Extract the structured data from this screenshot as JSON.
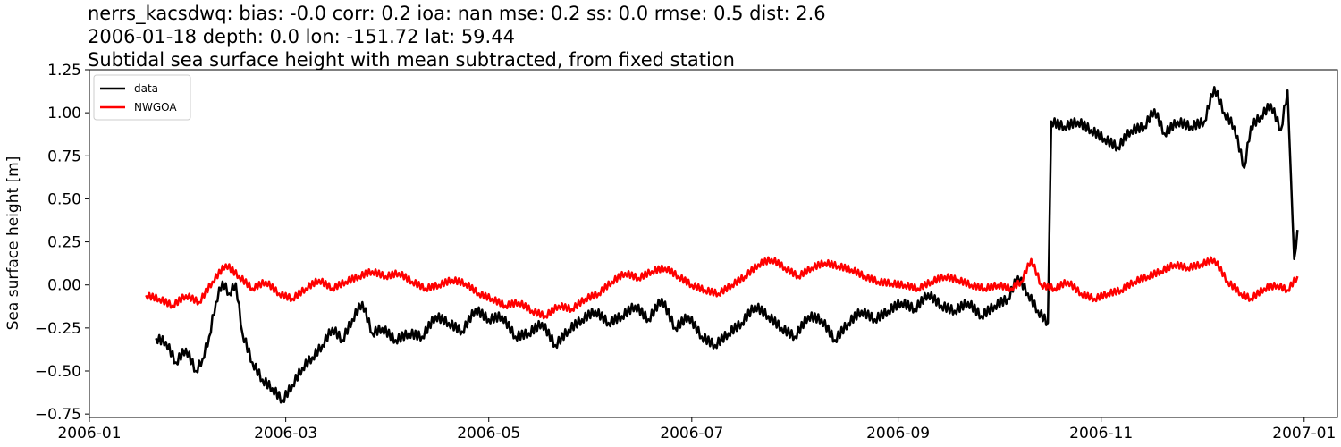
{
  "title": {
    "line1": "nerrs_kacsdwq: bias: -0.0  corr: 0.2  ioa: nan  mse: 0.2  ss: 0.0  rmse: 0.5  dist: 2.6",
    "line2": "2006-01-18 depth: 0.0 lon: -151.72 lat: 59.44",
    "line3": "Subtidal sea surface height with mean subtracted, from fixed station"
  },
  "chart_data": {
    "type": "line",
    "title": "nerrs_kacsdwq: bias: -0.0  corr: 0.2  ioa: nan  mse: 0.2  ss: 0.0  rmse: 0.5  dist: 2.6 / 2006-01-18 depth: 0.0 lon: -151.72 lat: 59.44 / Subtidal sea surface height with mean subtracted, from fixed station",
    "xlabel": "",
    "ylabel": "Sea surface height [m]",
    "xlim": [
      "2006-01-01",
      "2007-01-11"
    ],
    "ylim": [
      -0.77,
      1.25
    ],
    "x_ticks": [
      "2006-01",
      "2006-03",
      "2006-05",
      "2006-07",
      "2006-09",
      "2006-11",
      "2007-01"
    ],
    "y_ticks": [
      "−0.75",
      "−0.50",
      "−0.25",
      "0.00",
      "0.25",
      "0.50",
      "0.75",
      "1.00",
      "1.25"
    ],
    "grid": false,
    "legend": "top-left",
    "series": [
      {
        "name": "data",
        "color": "#000000",
        "points": [
          [
            "2006-01-21",
            -0.31
          ],
          [
            "2006-01-24",
            -0.33
          ],
          [
            "2006-01-27",
            -0.45
          ],
          [
            "2006-01-30",
            -0.37
          ],
          [
            "2006-02-02",
            -0.5
          ],
          [
            "2006-02-04",
            -0.43
          ],
          [
            "2006-02-06",
            -0.3
          ],
          [
            "2006-02-08",
            -0.1
          ],
          [
            "2006-02-10",
            0.02
          ],
          [
            "2006-02-12",
            -0.05
          ],
          [
            "2006-02-14",
            0.01
          ],
          [
            "2006-02-16",
            -0.28
          ],
          [
            "2006-02-19",
            -0.45
          ],
          [
            "2006-02-22",
            -0.55
          ],
          [
            "2006-02-25",
            -0.6
          ],
          [
            "2006-02-28",
            -0.67
          ],
          [
            "2006-03-03",
            -0.58
          ],
          [
            "2006-03-06",
            -0.48
          ],
          [
            "2006-03-09",
            -0.42
          ],
          [
            "2006-03-12",
            -0.35
          ],
          [
            "2006-03-15",
            -0.25
          ],
          [
            "2006-03-18",
            -0.32
          ],
          [
            "2006-03-21",
            -0.2
          ],
          [
            "2006-03-24",
            -0.1
          ],
          [
            "2006-03-27",
            -0.28
          ],
          [
            "2006-03-30",
            -0.25
          ],
          [
            "2006-04-03",
            -0.32
          ],
          [
            "2006-04-07",
            -0.28
          ],
          [
            "2006-04-11",
            -0.3
          ],
          [
            "2006-04-15",
            -0.18
          ],
          [
            "2006-04-19",
            -0.22
          ],
          [
            "2006-04-23",
            -0.27
          ],
          [
            "2006-04-27",
            -0.14
          ],
          [
            "2006-05-01",
            -0.2
          ],
          [
            "2006-05-05",
            -0.18
          ],
          [
            "2006-05-09",
            -0.3
          ],
          [
            "2006-05-13",
            -0.28
          ],
          [
            "2006-05-17",
            -0.22
          ],
          [
            "2006-05-21",
            -0.35
          ],
          [
            "2006-05-25",
            -0.26
          ],
          [
            "2006-05-29",
            -0.2
          ],
          [
            "2006-06-02",
            -0.15
          ],
          [
            "2006-06-06",
            -0.22
          ],
          [
            "2006-06-10",
            -0.18
          ],
          [
            "2006-06-14",
            -0.12
          ],
          [
            "2006-06-18",
            -0.2
          ],
          [
            "2006-06-22",
            -0.08
          ],
          [
            "2006-06-26",
            -0.25
          ],
          [
            "2006-06-30",
            -0.18
          ],
          [
            "2006-07-04",
            -0.3
          ],
          [
            "2006-07-08",
            -0.35
          ],
          [
            "2006-07-12",
            -0.28
          ],
          [
            "2006-07-16",
            -0.22
          ],
          [
            "2006-07-20",
            -0.12
          ],
          [
            "2006-07-24",
            -0.18
          ],
          [
            "2006-07-28",
            -0.25
          ],
          [
            "2006-08-01",
            -0.3
          ],
          [
            "2006-08-05",
            -0.18
          ],
          [
            "2006-08-09",
            -0.2
          ],
          [
            "2006-08-13",
            -0.32
          ],
          [
            "2006-08-17",
            -0.22
          ],
          [
            "2006-08-21",
            -0.15
          ],
          [
            "2006-08-25",
            -0.2
          ],
          [
            "2006-08-29",
            -0.15
          ],
          [
            "2006-09-02",
            -0.1
          ],
          [
            "2006-09-06",
            -0.14
          ],
          [
            "2006-09-10",
            -0.05
          ],
          [
            "2006-09-14",
            -0.12
          ],
          [
            "2006-09-18",
            -0.15
          ],
          [
            "2006-09-22",
            -0.1
          ],
          [
            "2006-09-26",
            -0.18
          ],
          [
            "2006-09-30",
            -0.12
          ],
          [
            "2006-10-04",
            -0.08
          ],
          [
            "2006-10-07",
            0.05
          ],
          [
            "2006-10-10",
            -0.05
          ],
          [
            "2006-10-13",
            -0.15
          ],
          [
            "2006-10-16",
            -0.22
          ],
          [
            "2006-10-17",
            0.95
          ],
          [
            "2006-10-21",
            0.92
          ],
          [
            "2006-10-25",
            0.95
          ],
          [
            "2006-10-29",
            0.9
          ],
          [
            "2006-11-02",
            0.85
          ],
          [
            "2006-11-06",
            0.8
          ],
          [
            "2006-11-10",
            0.9
          ],
          [
            "2006-11-14",
            0.92
          ],
          [
            "2006-11-17",
            1.02
          ],
          [
            "2006-11-20",
            0.88
          ],
          [
            "2006-11-24",
            0.95
          ],
          [
            "2006-11-28",
            0.92
          ],
          [
            "2006-12-02",
            0.95
          ],
          [
            "2006-12-05",
            1.15
          ],
          [
            "2006-12-08",
            1.0
          ],
          [
            "2006-12-11",
            0.92
          ],
          [
            "2006-12-14",
            0.68
          ],
          [
            "2006-12-16",
            0.92
          ],
          [
            "2006-12-19",
            0.98
          ],
          [
            "2006-12-22",
            1.05
          ],
          [
            "2006-12-25",
            0.9
          ],
          [
            "2006-12-27",
            1.13
          ],
          [
            "2006-12-29",
            0.15
          ],
          [
            "2006-12-30",
            0.32
          ]
        ]
      },
      {
        "name": "NWGOA",
        "color": "#ff0000",
        "points": [
          [
            "2006-01-18",
            -0.06
          ],
          [
            "2006-01-22",
            -0.08
          ],
          [
            "2006-01-26",
            -0.12
          ],
          [
            "2006-01-30",
            -0.06
          ],
          [
            "2006-02-03",
            -0.1
          ],
          [
            "2006-02-07",
            0.02
          ],
          [
            "2006-02-11",
            0.12
          ],
          [
            "2006-02-15",
            0.05
          ],
          [
            "2006-02-19",
            -0.02
          ],
          [
            "2006-02-23",
            0.02
          ],
          [
            "2006-02-27",
            -0.05
          ],
          [
            "2006-03-03",
            -0.08
          ],
          [
            "2006-03-07",
            -0.02
          ],
          [
            "2006-03-11",
            0.03
          ],
          [
            "2006-03-15",
            -0.02
          ],
          [
            "2006-03-19",
            0.02
          ],
          [
            "2006-03-23",
            0.05
          ],
          [
            "2006-03-27",
            0.08
          ],
          [
            "2006-03-31",
            0.05
          ],
          [
            "2006-04-04",
            0.07
          ],
          [
            "2006-04-08",
            0.02
          ],
          [
            "2006-04-12",
            -0.02
          ],
          [
            "2006-04-16",
            0.0
          ],
          [
            "2006-04-20",
            0.03
          ],
          [
            "2006-04-24",
            0.01
          ],
          [
            "2006-04-28",
            -0.05
          ],
          [
            "2006-05-02",
            -0.08
          ],
          [
            "2006-05-06",
            -0.12
          ],
          [
            "2006-05-10",
            -0.1
          ],
          [
            "2006-05-14",
            -0.15
          ],
          [
            "2006-05-18",
            -0.18
          ],
          [
            "2006-05-22",
            -0.12
          ],
          [
            "2006-05-26",
            -0.14
          ],
          [
            "2006-05-30",
            -0.08
          ],
          [
            "2006-06-03",
            -0.05
          ],
          [
            "2006-06-07",
            0.02
          ],
          [
            "2006-06-11",
            0.07
          ],
          [
            "2006-06-15",
            0.04
          ],
          [
            "2006-06-19",
            0.08
          ],
          [
            "2006-06-23",
            0.1
          ],
          [
            "2006-06-27",
            0.05
          ],
          [
            "2006-07-01",
            0.0
          ],
          [
            "2006-07-05",
            -0.03
          ],
          [
            "2006-07-09",
            -0.05
          ],
          [
            "2006-07-13",
            0.0
          ],
          [
            "2006-07-17",
            0.05
          ],
          [
            "2006-07-21",
            0.12
          ],
          [
            "2006-07-25",
            0.15
          ],
          [
            "2006-07-29",
            0.1
          ],
          [
            "2006-08-02",
            0.05
          ],
          [
            "2006-08-06",
            0.1
          ],
          [
            "2006-08-10",
            0.13
          ],
          [
            "2006-08-14",
            0.11
          ],
          [
            "2006-08-18",
            0.09
          ],
          [
            "2006-08-22",
            0.05
          ],
          [
            "2006-08-26",
            0.02
          ],
          [
            "2006-08-30",
            0.01
          ],
          [
            "2006-09-03",
            0.0
          ],
          [
            "2006-09-07",
            -0.02
          ],
          [
            "2006-09-11",
            0.02
          ],
          [
            "2006-09-15",
            0.05
          ],
          [
            "2006-09-19",
            0.03
          ],
          [
            "2006-09-23",
            0.0
          ],
          [
            "2006-09-27",
            -0.02
          ],
          [
            "2006-10-01",
            0.0
          ],
          [
            "2006-10-05",
            -0.02
          ],
          [
            "2006-10-08",
            0.02
          ],
          [
            "2006-10-11",
            0.15
          ],
          [
            "2006-10-14",
            0.0
          ],
          [
            "2006-10-18",
            -0.02
          ],
          [
            "2006-10-22",
            0.02
          ],
          [
            "2006-10-26",
            -0.05
          ],
          [
            "2006-10-30",
            -0.08
          ],
          [
            "2006-11-03",
            -0.05
          ],
          [
            "2006-11-07",
            -0.03
          ],
          [
            "2006-11-11",
            0.02
          ],
          [
            "2006-11-15",
            0.05
          ],
          [
            "2006-11-19",
            0.08
          ],
          [
            "2006-11-23",
            0.12
          ],
          [
            "2006-11-27",
            0.1
          ],
          [
            "2006-12-01",
            0.12
          ],
          [
            "2006-12-05",
            0.15
          ],
          [
            "2006-12-09",
            0.02
          ],
          [
            "2006-12-13",
            -0.05
          ],
          [
            "2006-12-16",
            -0.08
          ],
          [
            "2006-12-20",
            -0.02
          ],
          [
            "2006-12-24",
            0.0
          ],
          [
            "2006-12-27",
            -0.03
          ],
          [
            "2006-12-30",
            0.05
          ]
        ]
      }
    ]
  }
}
